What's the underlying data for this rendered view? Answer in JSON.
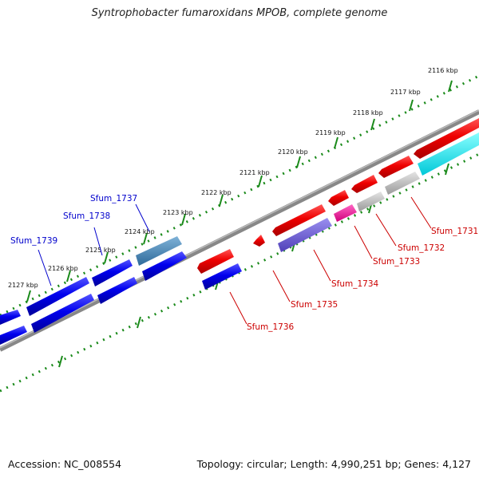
{
  "title": "Syntrophobacter fumaroxidans MPOB, complete genome",
  "accession": "Accession: NC_008554",
  "summary": "Topology: circular; Length: 4,990,251 bp; Genes: 4,127",
  "colors": {
    "backbone": "#7a7a7a",
    "tick_dots": "#1a8a1a",
    "label_forward": "#0000cc",
    "label_reverse": "#cc0000"
  },
  "scale_labels": [
    "2116 kbp",
    "2117 kbp",
    "2118 kbp",
    "2119 kbp",
    "2120 kbp",
    "2121 kbp",
    "2122 kbp",
    "2123 kbp",
    "2124 kbp",
    "2125 kbp",
    "2126 kbp",
    "2127 kbp"
  ],
  "gene_labels_forward": [
    "Sfum_1737",
    "Sfum_1738",
    "Sfum_1739"
  ],
  "gene_labels_reverse": [
    "Sfum_1731",
    "Sfum_1732",
    "Sfum_1733",
    "Sfum_1734",
    "Sfum_1735",
    "Sfum_1736"
  ]
}
